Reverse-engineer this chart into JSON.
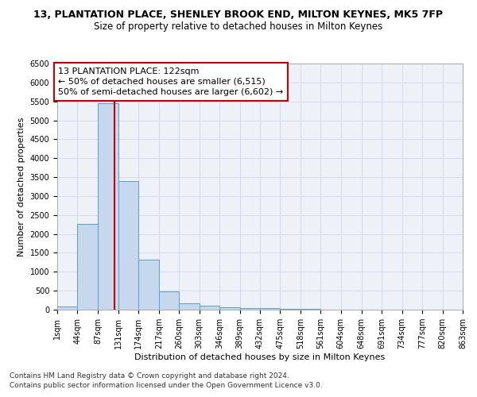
{
  "title1": "13, PLANTATION PLACE, SHENLEY BROOK END, MILTON KEYNES, MK5 7FP",
  "title2": "Size of property relative to detached houses in Milton Keynes",
  "xlabel": "Distribution of detached houses by size in Milton Keynes",
  "ylabel": "Number of detached properties",
  "footnote1": "Contains HM Land Registry data © Crown copyright and database right 2024.",
  "footnote2": "Contains public sector information licensed under the Open Government Licence v3.0.",
  "bar_edges": [
    1,
    44,
    87,
    131,
    174,
    217,
    260,
    303,
    346,
    389,
    432,
    475,
    518,
    561,
    604,
    648,
    691,
    734,
    777,
    820,
    863
  ],
  "bar_heights": [
    75,
    2275,
    5450,
    3390,
    1320,
    480,
    160,
    95,
    55,
    45,
    35,
    30,
    25,
    0,
    0,
    0,
    0,
    0,
    0,
    0
  ],
  "bar_color": "#c5d8ed",
  "bar_edgecolor": "#5a9fd4",
  "vline_x": 122,
  "vline_color": "#cc0000",
  "annotation_line1": "13 PLANTATION PLACE: 122sqm",
  "annotation_line2": "← 50% of detached houses are smaller (6,515)",
  "annotation_line3": "50% of semi-detached houses are larger (6,602) →",
  "annotation_box_color": "#cc0000",
  "ylim": [
    0,
    6500
  ],
  "yticks": [
    0,
    500,
    1000,
    1500,
    2000,
    2500,
    3000,
    3500,
    4000,
    4500,
    5000,
    5500,
    6000,
    6500
  ],
  "tick_labels": [
    "1sqm",
    "44sqm",
    "87sqm",
    "131sqm",
    "174sqm",
    "217sqm",
    "260sqm",
    "303sqm",
    "346sqm",
    "389sqm",
    "432sqm",
    "475sqm",
    "518sqm",
    "561sqm",
    "604sqm",
    "648sqm",
    "691sqm",
    "734sqm",
    "777sqm",
    "820sqm",
    "863sqm"
  ],
  "grid_color": "#d0d8e8",
  "bg_color": "#eef2f8",
  "title1_fontsize": 9,
  "title2_fontsize": 8.5,
  "axis_label_fontsize": 8,
  "tick_fontsize": 7,
  "footnote_fontsize": 6.5,
  "annotation_fontsize": 8
}
